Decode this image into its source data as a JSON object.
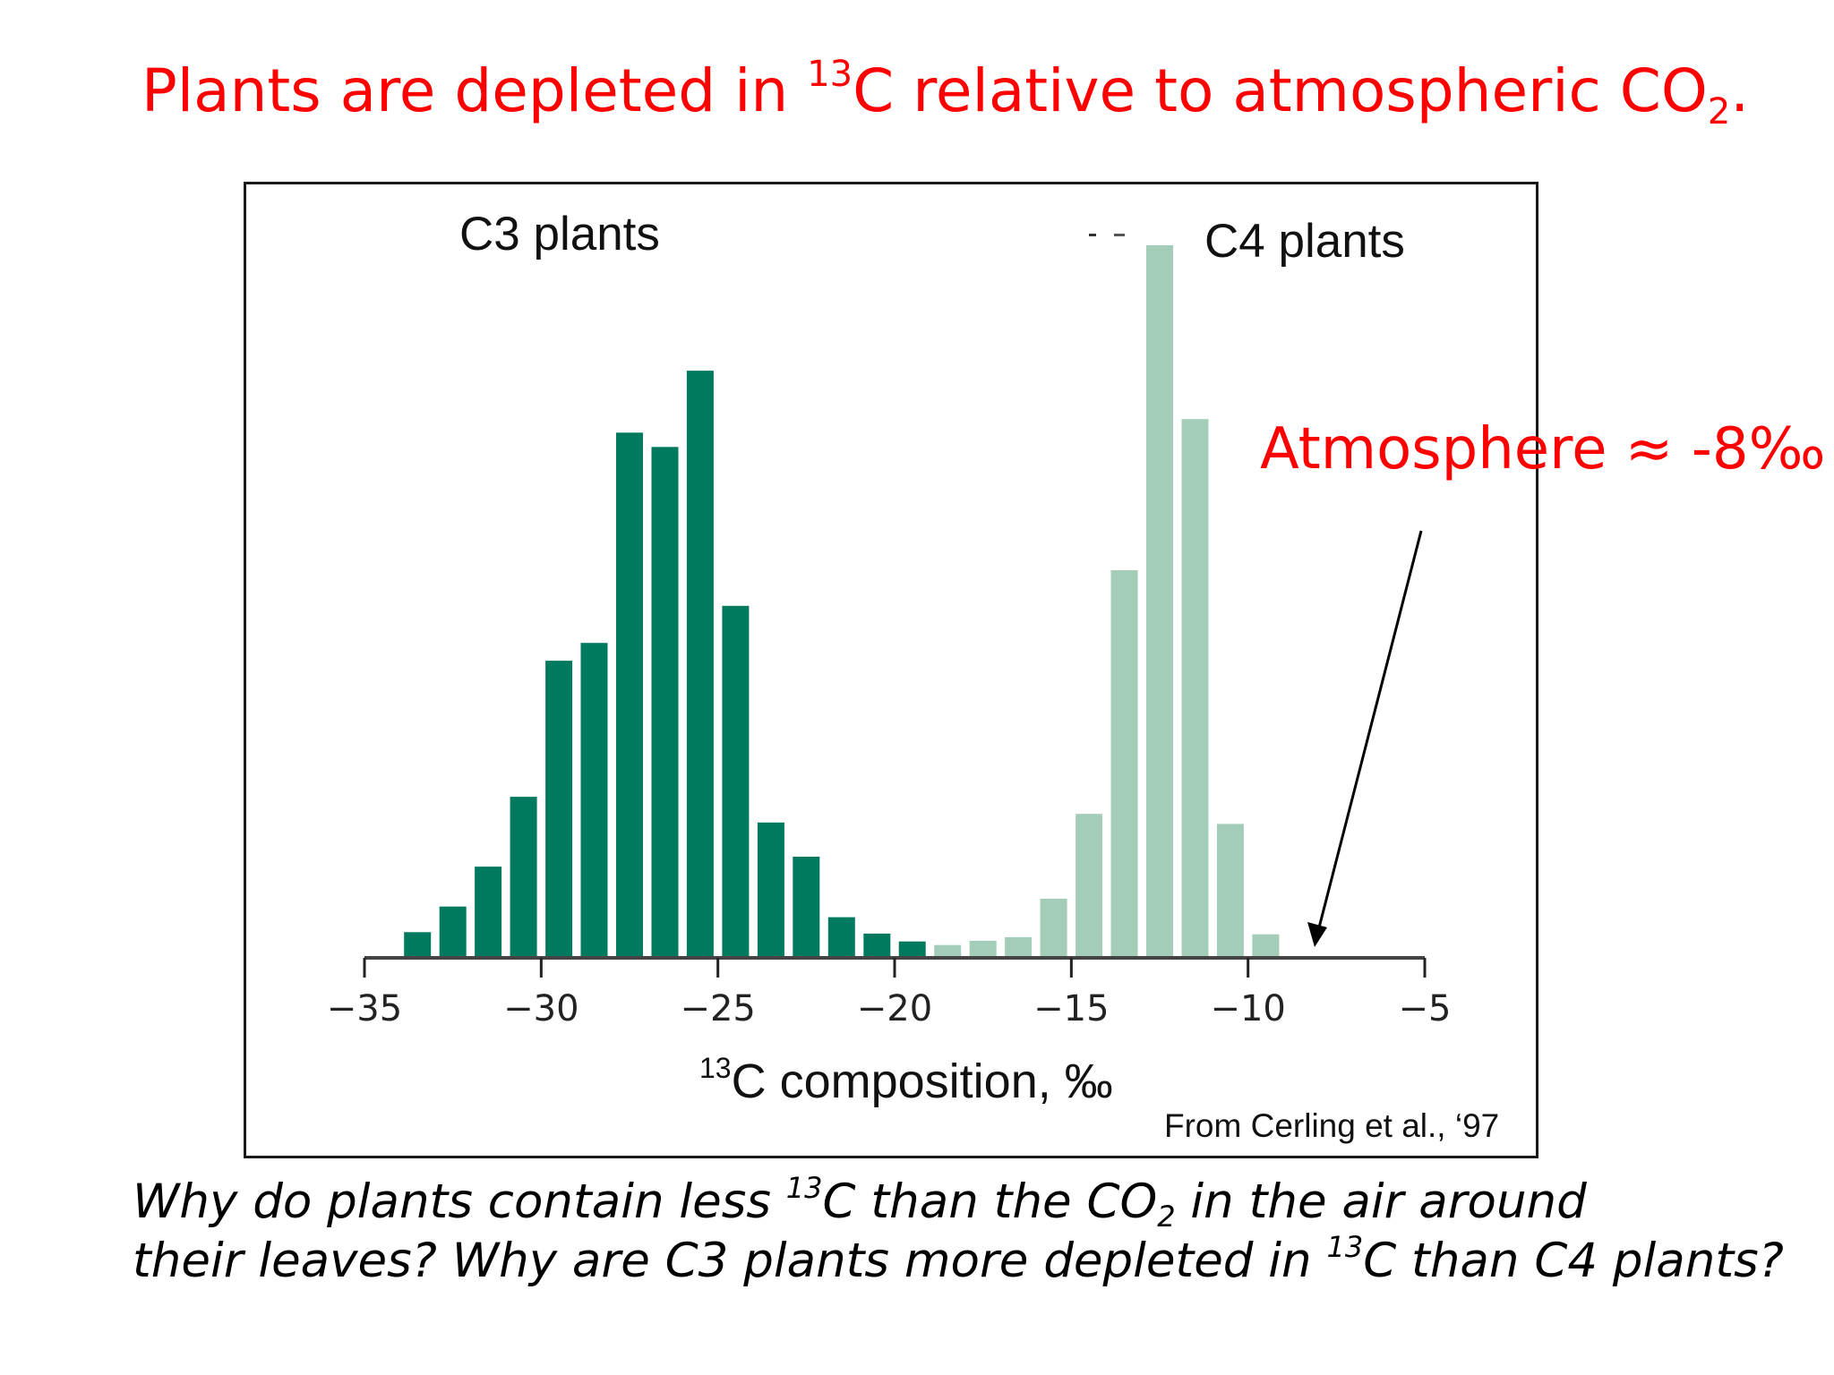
{
  "slide": {
    "title": {
      "prefix": "Plants are depleted in ",
      "isotope_sup": "13",
      "middle": "C relative to atmospheric CO",
      "sub": "2",
      "suffix": "."
    },
    "annotation": "Atmosphere ≈ -8‰",
    "question": {
      "line1_prefix": "Why do plants contain less ",
      "line1_sup": "13",
      "line1_middle": "C than the CO",
      "line1_sub": "2",
      "line1_suffix": " in the air around",
      "line2_prefix": "their leaves? Why are C3 plants more depleted in ",
      "line2_sup": "13",
      "line2_suffix": "C than C4 plants?"
    },
    "colors": {
      "title": "#ff0000",
      "c3_bar": "#007a5e",
      "c4_bar": "#a3cdb9",
      "axis": "#444444"
    }
  },
  "chart_data": {
    "type": "bar",
    "title": "",
    "xlabel_sup": "13",
    "xlabel": "C composition, ‰",
    "ylabel": "",
    "xlim": [
      -35,
      -5
    ],
    "xticks": [
      -35,
      -30,
      -25,
      -20,
      -15,
      -10,
      -5
    ],
    "xtick_labels": [
      "−35",
      "−30",
      "−25",
      "−20",
      "−15",
      "−10",
      "−5"
    ],
    "grid": false,
    "y_axis_shown": false,
    "bin_width": 1,
    "series": [
      {
        "name": "C3 plants",
        "color": "#007a5e",
        "x": [
          -33.5,
          -32.5,
          -31.5,
          -30.5,
          -29.5,
          -28.5,
          -27.5,
          -26.5,
          -25.5,
          -24.5,
          -23.5,
          -22.5,
          -21.5,
          -20.5,
          -19.5
        ],
        "values": [
          3.6,
          7.2,
          12.8,
          22.6,
          41.7,
          44.2,
          73.7,
          71.7,
          82.4,
          49.4,
          19.0,
          14.2,
          5.7,
          3.4,
          2.3
        ]
      },
      {
        "name": "C4 plants",
        "color": "#a3cdb9",
        "x": [
          -18.5,
          -17.5,
          -16.5,
          -15.5,
          -14.5,
          -13.5,
          -12.5,
          -11.5,
          -10.5,
          -9.5
        ],
        "values": [
          1.8,
          2.4,
          2.9,
          8.3,
          20.2,
          54.4,
          100.0,
          75.6,
          18.8,
          3.3
        ]
      }
    ],
    "value_units": "relative frequency (tallest bar = 100)",
    "annotations": [
      {
        "text": "Atmosphere ≈ -8‰",
        "arrow_to_x": -8
      }
    ],
    "source": "From Cerling et al., ‘97"
  },
  "labels": {
    "c3": "C3 plants",
    "c4": "C4 plants",
    "citation": "From Cerling et al., ‘97"
  }
}
